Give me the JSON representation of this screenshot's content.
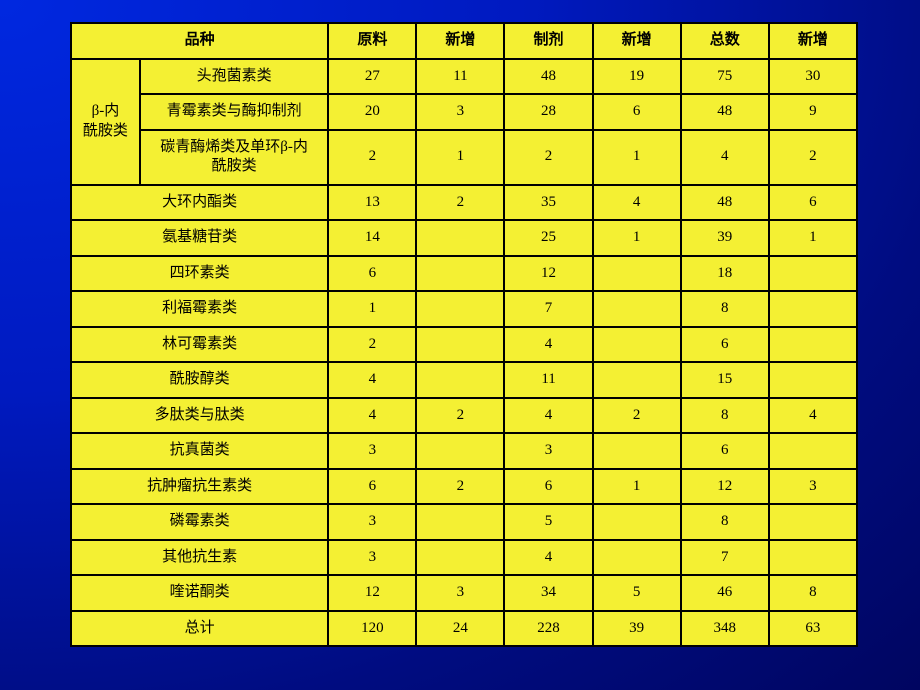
{
  "headers": {
    "variety": "品种",
    "c1": "原料",
    "c2": "新增",
    "c3": "制剂",
    "c4": "新增",
    "c5": "总数",
    "c6": "新增"
  },
  "group_label": "β-内\n酰胺类",
  "group_rows": [
    {
      "label": "头孢菌素类",
      "v": [
        "27",
        "11",
        "48",
        "19",
        "75",
        "30"
      ]
    },
    {
      "label": "青霉素类与酶抑制剂",
      "v": [
        "20",
        "3",
        "28",
        "6",
        "48",
        "9"
      ]
    },
    {
      "label": "碳青酶烯类及单环β-内\n酰胺类",
      "v": [
        "2",
        "1",
        "2",
        "1",
        "4",
        "2"
      ]
    }
  ],
  "rows": [
    {
      "label": "大环内酯类",
      "v": [
        "13",
        "2",
        "35",
        "4",
        "48",
        "6"
      ]
    },
    {
      "label": "氨基糖苷类",
      "v": [
        "14",
        "",
        "25",
        "1",
        "39",
        "1"
      ]
    },
    {
      "label": "四环素类",
      "v": [
        "6",
        "",
        "12",
        "",
        "18",
        ""
      ]
    },
    {
      "label": "利福霉素类",
      "v": [
        "1",
        "",
        "7",
        "",
        "8",
        ""
      ]
    },
    {
      "label": "林可霉素类",
      "v": [
        "2",
        "",
        "4",
        "",
        "6",
        ""
      ]
    },
    {
      "label": "酰胺醇类",
      "v": [
        "4",
        "",
        "11",
        "",
        "15",
        ""
      ]
    },
    {
      "label": "多肽类与肽类",
      "v": [
        "4",
        "2",
        "4",
        "2",
        "8",
        "4"
      ]
    },
    {
      "label": "抗真菌类",
      "v": [
        "3",
        "",
        "3",
        "",
        "6",
        ""
      ]
    },
    {
      "label": "抗肿瘤抗生素类",
      "v": [
        "6",
        "2",
        "6",
        "1",
        "12",
        "3"
      ]
    },
    {
      "label": "磷霉素类",
      "v": [
        "3",
        "",
        "5",
        "",
        "8",
        ""
      ]
    },
    {
      "label": "其他抗生素",
      "v": [
        "3",
        "",
        "4",
        "",
        "7",
        ""
      ]
    },
    {
      "label": "喹诺酮类",
      "v": [
        "12",
        "3",
        "34",
        "5",
        "46",
        "8"
      ]
    },
    {
      "label": "总计",
      "v": [
        "120",
        "24",
        "228",
        "39",
        "348",
        "63"
      ]
    }
  ],
  "colors": {
    "cell_bg": "#f4f033",
    "border": "#000000",
    "text": "#000000"
  }
}
